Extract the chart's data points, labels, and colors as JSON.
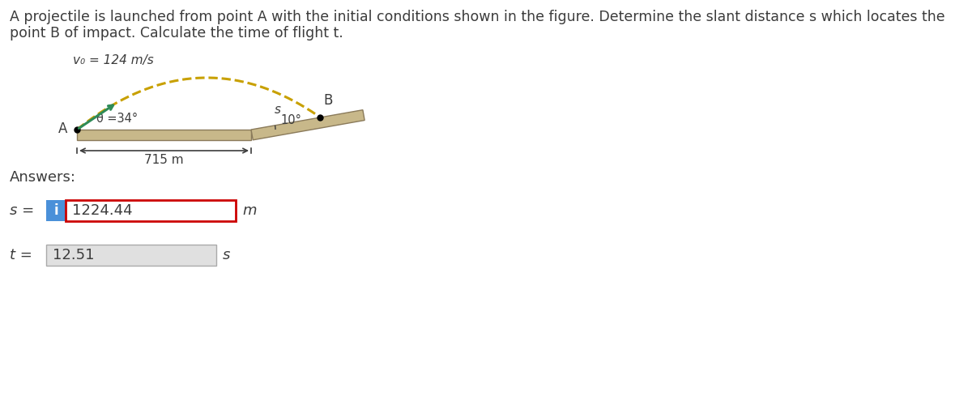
{
  "title_line1": "A projectile is launched from point A with the initial conditions shown in the figure. Determine the slant distance s which locates the",
  "title_line2": "point B of impact. Calculate the time of flight t.",
  "v0_label": "v₀ = 124 m/s",
  "theta_label": "θ =34°",
  "dist_label": "715 m",
  "slope_angle_label": "10°",
  "s_label": "s",
  "B_label": "B",
  "A_label": "A",
  "answers_label": "Answers:",
  "s_answer_label": "s =",
  "s_answer_value": "1224.44",
  "s_answer_unit": "m",
  "t_answer_label": "t =",
  "t_answer_value": "12.51",
  "t_answer_unit": "s",
  "bg_color": "#ffffff",
  "text_color": "#3c3c3c",
  "ground_color": "#c8b88a",
  "ground_edge_color": "#8a7a5a",
  "arrow_color": "#2e8b57",
  "traj_color": "#c8a000",
  "i_box_color": "#4a90d9",
  "s_box_border_color": "#cc0000",
  "t_box_bg_color": "#e0e0e0",
  "t_box_border_color": "#aaaaaa",
  "dim_arrow_color": "#3c3c3c"
}
